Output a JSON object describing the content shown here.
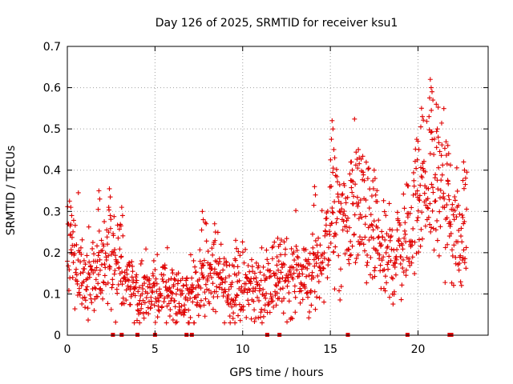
{
  "chart_data": {
    "type": "scatter",
    "title": "Day 126 of 2025, SRMTID for receiver ksu1",
    "xlabel": "GPS time / hours",
    "ylabel": "SRMTID / TECUs",
    "xlim": [
      0,
      24
    ],
    "ylim": [
      0,
      0.7
    ],
    "xticks": [
      0,
      5,
      10,
      15,
      20
    ],
    "xtick_labels": [
      "0",
      "5",
      "10",
      "15",
      "20"
    ],
    "yticks": [
      0,
      0.1,
      0.2,
      0.3,
      0.4,
      0.5,
      0.6,
      0.7
    ],
    "ytick_labels": [
      "0",
      "0.1",
      "0.2",
      "0.3",
      "0.4",
      "0.5",
      "0.6",
      "0.7"
    ],
    "grid": true,
    "marker": "plus",
    "series_color": "#e00000",
    "baseline_markers_x": [
      2.6,
      3.1,
      4.0,
      5.0,
      6.8,
      7.1,
      11.4,
      12.1,
      16.0,
      19.4,
      21.8,
      21.9
    ],
    "envelope": [
      {
        "x": 0.0,
        "y": 0.22
      },
      {
        "x": 0.5,
        "y": 0.18
      },
      {
        "x": 1.0,
        "y": 0.13
      },
      {
        "x": 1.5,
        "y": 0.15
      },
      {
        "x": 2.0,
        "y": 0.17
      },
      {
        "x": 2.5,
        "y": 0.21
      },
      {
        "x": 3.0,
        "y": 0.17
      },
      {
        "x": 3.5,
        "y": 0.13
      },
      {
        "x": 4.0,
        "y": 0.1
      },
      {
        "x": 4.5,
        "y": 0.1
      },
      {
        "x": 5.0,
        "y": 0.11
      },
      {
        "x": 5.5,
        "y": 0.1
      },
      {
        "x": 6.0,
        "y": 0.09
      },
      {
        "x": 6.5,
        "y": 0.09
      },
      {
        "x": 7.0,
        "y": 0.1
      },
      {
        "x": 7.5,
        "y": 0.13
      },
      {
        "x": 8.0,
        "y": 0.15
      },
      {
        "x": 8.5,
        "y": 0.14
      },
      {
        "x": 9.0,
        "y": 0.12
      },
      {
        "x": 9.5,
        "y": 0.12
      },
      {
        "x": 10.0,
        "y": 0.12
      },
      {
        "x": 10.5,
        "y": 0.11
      },
      {
        "x": 11.0,
        "y": 0.11
      },
      {
        "x": 11.5,
        "y": 0.13
      },
      {
        "x": 12.0,
        "y": 0.14
      },
      {
        "x": 12.5,
        "y": 0.14
      },
      {
        "x": 13.0,
        "y": 0.15
      },
      {
        "x": 13.5,
        "y": 0.14
      },
      {
        "x": 14.0,
        "y": 0.15
      },
      {
        "x": 14.5,
        "y": 0.18
      },
      {
        "x": 15.0,
        "y": 0.27
      },
      {
        "x": 15.5,
        "y": 0.26
      },
      {
        "x": 16.0,
        "y": 0.27
      },
      {
        "x": 16.5,
        "y": 0.31
      },
      {
        "x": 17.0,
        "y": 0.27
      },
      {
        "x": 17.5,
        "y": 0.22
      },
      {
        "x": 18.0,
        "y": 0.19
      },
      {
        "x": 18.5,
        "y": 0.18
      },
      {
        "x": 19.0,
        "y": 0.22
      },
      {
        "x": 19.5,
        "y": 0.24
      },
      {
        "x": 20.0,
        "y": 0.34
      },
      {
        "x": 20.5,
        "y": 0.36
      },
      {
        "x": 21.0,
        "y": 0.37
      },
      {
        "x": 21.5,
        "y": 0.33
      },
      {
        "x": 22.0,
        "y": 0.24
      },
      {
        "x": 22.5,
        "y": 0.24
      },
      {
        "x": 22.8,
        "y": 0.28
      }
    ],
    "peaks": [
      {
        "x": 0.2,
        "y": 0.31
      },
      {
        "x": 1.8,
        "y": 0.35
      },
      {
        "x": 2.4,
        "y": 0.355
      },
      {
        "x": 3.1,
        "y": 0.31
      },
      {
        "x": 7.7,
        "y": 0.3
      },
      {
        "x": 8.4,
        "y": 0.27
      },
      {
        "x": 9.6,
        "y": 0.23
      },
      {
        "x": 12.0,
        "y": 0.235
      },
      {
        "x": 14.1,
        "y": 0.36
      },
      {
        "x": 15.1,
        "y": 0.52
      },
      {
        "x": 15.2,
        "y": 0.45
      },
      {
        "x": 16.2,
        "y": 0.42
      },
      {
        "x": 16.6,
        "y": 0.45
      },
      {
        "x": 17.5,
        "y": 0.4
      },
      {
        "x": 20.0,
        "y": 0.47
      },
      {
        "x": 20.2,
        "y": 0.55
      },
      {
        "x": 20.7,
        "y": 0.62
      },
      {
        "x": 20.8,
        "y": 0.59
      },
      {
        "x": 21.1,
        "y": 0.5
      },
      {
        "x": 21.7,
        "y": 0.46
      },
      {
        "x": 22.6,
        "y": 0.42
      }
    ]
  }
}
